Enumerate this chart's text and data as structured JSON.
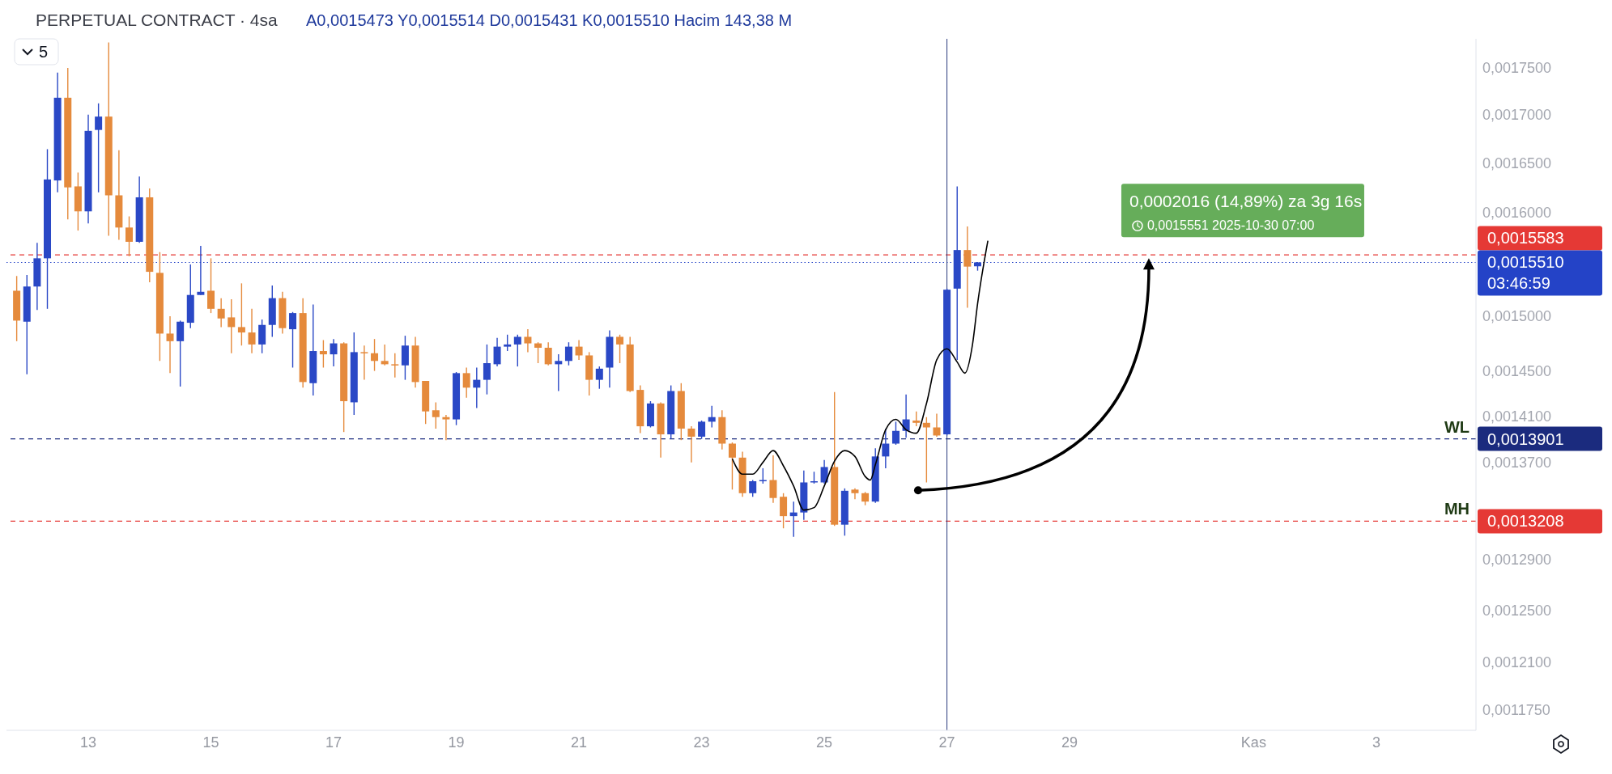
{
  "chart_data": {
    "type": "candlestick",
    "title": "PERPETUAL CONTRACT · 4sa",
    "log": "y",
    "x": [
      "2025-10-11T20:00",
      "2025-10-12T00:00",
      "2025-10-12T04:00",
      "2025-10-12T08:00",
      "2025-10-12T12:00",
      "2025-10-12T16:00",
      "2025-10-12T20:00",
      "2025-10-13T00:00",
      "2025-10-13T04:00",
      "2025-10-13T08:00",
      "2025-10-13T12:00",
      "2025-10-13T16:00",
      "2025-10-13T20:00",
      "2025-10-14T00:00",
      "2025-10-14T04:00",
      "2025-10-14T08:00",
      "2025-10-14T12:00",
      "2025-10-14T16:00",
      "2025-10-14T20:00",
      "2025-10-15T00:00",
      "2025-10-15T04:00",
      "2025-10-15T08:00",
      "2025-10-15T12:00",
      "2025-10-15T16:00",
      "2025-10-15T20:00",
      "2025-10-16T00:00",
      "2025-10-16T04:00",
      "2025-10-16T08:00",
      "2025-10-16T12:00",
      "2025-10-16T16:00",
      "2025-10-16T20:00",
      "2025-10-17T00:00",
      "2025-10-17T04:00",
      "2025-10-17T08:00",
      "2025-10-17T12:00",
      "2025-10-17T16:00",
      "2025-10-17T20:00",
      "2025-10-18T00:00",
      "2025-10-18T04:00",
      "2025-10-18T08:00",
      "2025-10-18T12:00",
      "2025-10-18T16:00",
      "2025-10-18T20:00",
      "2025-10-19T00:00",
      "2025-10-19T04:00",
      "2025-10-19T08:00",
      "2025-10-19T12:00",
      "2025-10-19T16:00",
      "2025-10-19T20:00",
      "2025-10-20T00:00",
      "2025-10-20T04:00",
      "2025-10-20T08:00",
      "2025-10-20T12:00",
      "2025-10-20T16:00",
      "2025-10-20T20:00",
      "2025-10-21T00:00",
      "2025-10-21T04:00",
      "2025-10-21T08:00",
      "2025-10-21T12:00",
      "2025-10-21T16:00",
      "2025-10-21T20:00",
      "2025-10-22T00:00",
      "2025-10-22T04:00",
      "2025-10-22T08:00",
      "2025-10-22T12:00",
      "2025-10-22T16:00",
      "2025-10-22T20:00",
      "2025-10-23T00:00",
      "2025-10-23T04:00",
      "2025-10-23T08:00",
      "2025-10-23T12:00",
      "2025-10-23T16:00",
      "2025-10-23T20:00",
      "2025-10-24T00:00",
      "2025-10-24T04:00",
      "2025-10-24T08:00",
      "2025-10-24T12:00",
      "2025-10-24T16:00",
      "2025-10-24T20:00",
      "2025-10-25T00:00",
      "2025-10-25T04:00",
      "2025-10-25T08:00",
      "2025-10-25T12:00",
      "2025-10-25T16:00",
      "2025-10-25T20:00",
      "2025-10-26T00:00",
      "2025-10-26T04:00",
      "2025-10-26T08:00",
      "2025-10-26T12:00",
      "2025-10-26T16:00",
      "2025-10-26T20:00",
      "2025-10-27T00:00",
      "2025-10-27T04:00",
      "2025-10-27T08:00",
      "2025-10-27T12:00"
    ],
    "ohlc": [
      [
        0.001524,
        0.001538,
        0.001477,
        0.001496
      ],
      [
        0.001495,
        0.001539,
        0.001447,
        0.001528
      ],
      [
        0.001528,
        0.00157,
        0.001506,
        0.001555
      ],
      [
        0.001555,
        0.001664,
        0.001507,
        0.001633
      ],
      [
        0.001632,
        0.001745,
        0.00162,
        0.001718
      ],
      [
        0.001718,
        0.00175,
        0.001593,
        0.001625
      ],
      [
        0.001626,
        0.00164,
        0.001582,
        0.001601
      ],
      [
        0.001601,
        0.0017,
        0.001589,
        0.001683
      ],
      [
        0.001684,
        0.001712,
        0.00162,
        0.001698
      ],
      [
        0.001698,
        0.001778,
        0.001577,
        0.001617
      ],
      [
        0.001617,
        0.001663,
        0.001573,
        0.001585
      ],
      [
        0.001585,
        0.001596,
        0.001557,
        0.001571
      ],
      [
        0.001571,
        0.001636,
        0.00157,
        0.001615
      ],
      [
        0.001615,
        0.001624,
        0.001532,
        0.001542
      ],
      [
        0.001541,
        0.001561,
        0.001459,
        0.001484
      ],
      [
        0.001484,
        0.0015,
        0.001448,
        0.001477
      ],
      [
        0.001477,
        0.001496,
        0.001436,
        0.001495
      ],
      [
        0.001494,
        0.001549,
        0.001489,
        0.00152
      ],
      [
        0.00152,
        0.001567,
        0.00152,
        0.001523
      ],
      [
        0.001524,
        0.001555,
        0.001503,
        0.001507
      ],
      [
        0.001507,
        0.001517,
        0.00149,
        0.001498
      ],
      [
        0.001499,
        0.001516,
        0.001466,
        0.00149
      ],
      [
        0.00149,
        0.001531,
        0.001473,
        0.001485
      ],
      [
        0.001485,
        0.001507,
        0.001466,
        0.001474
      ],
      [
        0.001474,
        0.001497,
        0.001466,
        0.001492
      ],
      [
        0.001492,
        0.001529,
        0.001481,
        0.001517
      ],
      [
        0.001517,
        0.001523,
        0.001484,
        0.001489
      ],
      [
        0.001488,
        0.001504,
        0.001453,
        0.001503
      ],
      [
        0.001503,
        0.001517,
        0.001435,
        0.00144
      ],
      [
        0.001439,
        0.001511,
        0.001428,
        0.001468
      ],
      [
        0.001468,
        0.001478,
        0.001453,
        0.001465
      ],
      [
        0.001465,
        0.001479,
        0.001454,
        0.001475
      ],
      [
        0.001475,
        0.001476,
        0.001396,
        0.001423
      ],
      [
        0.001422,
        0.001485,
        0.001411,
        0.001467
      ],
      [
        0.001467,
        0.001473,
        0.001442,
        0.001467
      ],
      [
        0.001466,
        0.001479,
        0.00145,
        0.001459
      ],
      [
        0.001459,
        0.001474,
        0.001455,
        0.001456
      ],
      [
        0.001456,
        0.001466,
        0.001444,
        0.001455
      ],
      [
        0.001455,
        0.001482,
        0.001442,
        0.001473
      ],
      [
        0.001473,
        0.001481,
        0.001435,
        0.00144
      ],
      [
        0.001441,
        0.001441,
        0.001403,
        0.001414
      ],
      [
        0.001415,
        0.001422,
        0.001399,
        0.001409
      ],
      [
        0.001409,
        0.001411,
        0.001389,
        0.001407
      ],
      [
        0.001407,
        0.001449,
        0.001402,
        0.001448
      ],
      [
        0.001448,
        0.001453,
        0.001426,
        0.001435
      ],
      [
        0.001435,
        0.001453,
        0.001417,
        0.001442
      ],
      [
        0.001442,
        0.001474,
        0.001429,
        0.001457
      ],
      [
        0.001456,
        0.00148,
        0.001454,
        0.001472
      ],
      [
        0.001472,
        0.001483,
        0.001468,
        0.001474
      ],
      [
        0.001474,
        0.001483,
        0.001454,
        0.001481
      ],
      [
        0.001481,
        0.001488,
        0.001467,
        0.001475
      ],
      [
        0.001475,
        0.001476,
        0.001457,
        0.001471
      ],
      [
        0.001471,
        0.001476,
        0.001455,
        0.001456
      ],
      [
        0.001456,
        0.001465,
        0.001432,
        0.001459
      ],
      [
        0.001459,
        0.001476,
        0.001455,
        0.001472
      ],
      [
        0.001472,
        0.001478,
        0.00146,
        0.001464
      ],
      [
        0.001464,
        0.001467,
        0.001428,
        0.001442
      ],
      [
        0.001442,
        0.001454,
        0.001434,
        0.001452
      ],
      [
        0.001453,
        0.001487,
        0.001435,
        0.001481
      ],
      [
        0.001481,
        0.001483,
        0.001457,
        0.001474
      ],
      [
        0.001474,
        0.001481,
        0.001431,
        0.001432
      ],
      [
        0.001433,
        0.001437,
        0.001395,
        0.001401
      ],
      [
        0.001401,
        0.001423,
        0.0014,
        0.001421
      ],
      [
        0.001421,
        0.001422,
        0.001374,
        0.001394
      ],
      [
        0.001394,
        0.001437,
        0.00139,
        0.001432
      ],
      [
        0.001432,
        0.001439,
        0.001389,
        0.001399
      ],
      [
        0.001399,
        0.001401,
        0.00137,
        0.001392
      ],
      [
        0.001392,
        0.001406,
        0.00139,
        0.001405
      ],
      [
        0.001405,
        0.001419,
        0.0014,
        0.001409
      ],
      [
        0.001409,
        0.001415,
        0.001381,
        0.001386
      ],
      [
        0.001386,
        0.001387,
        0.001347,
        0.001374
      ],
      [
        0.001374,
        0.001379,
        0.001341,
        0.001344
      ],
      [
        0.001344,
        0.001355,
        0.001341,
        0.001354
      ],
      [
        0.001354,
        0.001365,
        0.001352,
        0.001355
      ],
      [
        0.001355,
        0.001376,
        0.001336,
        0.00134
      ],
      [
        0.001341,
        0.001344,
        0.001315,
        0.001325
      ],
      [
        0.001325,
        0.001337,
        0.001308,
        0.001328
      ],
      [
        0.001328,
        0.001363,
        0.001322,
        0.001353
      ],
      [
        0.001353,
        0.001362,
        0.001352,
        0.001354
      ],
      [
        0.001353,
        0.001372,
        0.001352,
        0.001366
      ],
      [
        0.001366,
        0.001431,
        0.001317,
        0.001318
      ],
      [
        0.001318,
        0.001348,
        0.001309,
        0.001346
      ],
      [
        0.001347,
        0.001348,
        0.001339,
        0.001344
      ],
      [
        0.001344,
        0.001345,
        0.001334,
        0.001337
      ],
      [
        0.001337,
        0.001382,
        0.001336,
        0.001375
      ],
      [
        0.001375,
        0.001399,
        0.001365,
        0.001386
      ],
      [
        0.001386,
        0.001405,
        0.001385,
        0.001397
      ],
      [
        0.001397,
        0.001429,
        0.001391,
        0.001407
      ],
      [
        0.001406,
        0.001414,
        0.001401,
        0.001404
      ],
      [
        0.001404,
        0.001409,
        0.001353,
        0.0014
      ],
      [
        0.0014,
        0.001412,
        0.001392,
        0.001393
      ],
      [
        0.001394,
        0.001526,
        0.001393,
        0.001525
      ],
      [
        0.001526,
        0.001626,
        0.00146,
        0.001563
      ],
      [
        0.001563,
        0.001586,
        0.001508,
        0.001547
      ],
      [
        0.0015473,
        0.0015514,
        0.0015431,
        0.001551
      ]
    ],
    "colors": [
      "#e58a3c",
      "#2a48c6",
      "#2a48c6",
      "#2a48c6",
      "#2a48c6",
      "#e58a3c",
      "#e58a3c",
      "#2a48c6",
      "#2a48c6",
      "#e58a3c",
      "#e58a3c",
      "#e58a3c",
      "#2a48c6",
      "#e58a3c",
      "#e58a3c",
      "#e58a3c",
      "#2a48c6",
      "#2a48c6",
      "#2a48c6",
      "#e58a3c",
      "#e58a3c",
      "#e58a3c",
      "#e58a3c",
      "#e58a3c",
      "#2a48c6",
      "#2a48c6",
      "#e58a3c",
      "#2a48c6",
      "#e58a3c",
      "#2a48c6",
      "#e58a3c",
      "#2a48c6",
      "#e58a3c",
      "#2a48c6",
      "#e58a3c",
      "#e58a3c",
      "#e58a3c",
      "#e58a3c",
      "#2a48c6",
      "#e58a3c",
      "#e58a3c",
      "#e58a3c",
      "#e58a3c",
      "#2a48c6",
      "#e58a3c",
      "#2a48c6",
      "#2a48c6",
      "#2a48c6",
      "#2a48c6",
      "#2a48c6",
      "#e58a3c",
      "#e58a3c",
      "#e58a3c",
      "#2a48c6",
      "#2a48c6",
      "#e58a3c",
      "#e58a3c",
      "#2a48c6",
      "#2a48c6",
      "#e58a3c",
      "#e58a3c",
      "#e58a3c",
      "#2a48c6",
      "#e58a3c",
      "#2a48c6",
      "#e58a3c",
      "#e58a3c",
      "#2a48c6",
      "#2a48c6",
      "#e58a3c",
      "#e58a3c",
      "#e58a3c",
      "#2a48c6",
      "#2a48c6",
      "#e58a3c",
      "#e58a3c",
      "#2a48c6",
      "#2a48c6",
      "#2a48c6",
      "#2a48c6",
      "#e58a3c",
      "#2a48c6",
      "#e58a3c",
      "#e58a3c",
      "#2a48c6",
      "#2a48c6",
      "#2a48c6",
      "#2a48c6",
      "#e58a3c",
      "#e58a3c",
      "#e58a3c",
      "#2a48c6",
      "#2a48c6",
      "#e58a3c",
      "#2a48c6"
    ],
    "series": [
      {
        "type": "line",
        "color": "#000000",
        "x": [
          "2025-10-23T12:00",
          "2025-10-23T16:00",
          "2025-10-23T20:00",
          "2025-10-24T00:00",
          "2025-10-24T04:00",
          "2025-10-24T08:00",
          "2025-10-24T12:00",
          "2025-10-24T16:00",
          "2025-10-24T20:00",
          "2025-10-25T00:00",
          "2025-10-25T04:00",
          "2025-10-25T08:00",
          "2025-10-25T12:00",
          "2025-10-25T16:00",
          "2025-10-25T18:00",
          "2025-10-25T20:00",
          "2025-10-26T00:00",
          "2025-10-26T04:00",
          "2025-10-26T08:00",
          "2025-10-26T12:00",
          "2025-10-26T16:00",
          "2025-10-26T20:00",
          "2025-10-27T00:00",
          "2025-10-27T04:00",
          "2025-10-27T07:00",
          "2025-10-27T10:00",
          "2025-10-27T12:00",
          "2025-10-27T16:00"
        ],
        "values": [
          0.001373,
          0.00136,
          0.00136,
          0.00137,
          0.00138,
          0.001367,
          0.00135,
          0.00133,
          0.001332,
          0.00135,
          0.001371,
          0.00138,
          0.001375,
          0.001358,
          0.001355,
          0.001368,
          0.001398,
          0.001407,
          0.001398,
          0.001395,
          0.001421,
          0.00146,
          0.00147,
          0.001458,
          0.001448,
          0.001474,
          0.001512,
          0.001572
        ]
      }
    ],
    "xlim": [
      "2025-10-11T16:00",
      "2025-11-04T15:00"
    ],
    "xticks": [
      {
        "value": "2025-10-13",
        "label": "13"
      },
      {
        "value": "2025-10-15",
        "label": "15"
      },
      {
        "value": "2025-10-17",
        "label": "17"
      },
      {
        "value": "2025-10-19",
        "label": "19"
      },
      {
        "value": "2025-10-21",
        "label": "21"
      },
      {
        "value": "2025-10-23",
        "label": "23"
      },
      {
        "value": "2025-10-25",
        "label": "25"
      },
      {
        "value": "2025-10-27",
        "label": "27"
      },
      {
        "value": "2025-10-29",
        "label": "29"
      },
      {
        "value": "2025-11-01",
        "label": "Kas"
      },
      {
        "value": "2025-11-03",
        "label": "3"
      }
    ],
    "ylim": [
      0.00116,
      0.001782
    ],
    "yticks": [
      {
        "value": 0.00175,
        "label": "0,0017500"
      },
      {
        "value": 0.0017,
        "label": "0,0017000"
      },
      {
        "value": 0.00165,
        "label": "0,0016500"
      },
      {
        "value": 0.0016,
        "label": "0,0016000"
      },
      {
        "value": 0.0015,
        "label": "0,0015000"
      },
      {
        "value": 0.00145,
        "label": "0,0014500"
      },
      {
        "value": 0.00141,
        "label": "0,0014100"
      },
      {
        "value": 0.00137,
        "label": "0,0013700"
      },
      {
        "value": 0.001551,
        "label": "0,0015510"
      },
      {
        "value": 0.0013901,
        "label": "0,0013901"
      },
      {
        "value": 0.0013208,
        "label": "0,0013208"
      },
      {
        "value": 0.00129,
        "label": "0,0012900"
      },
      {
        "value": 0.00125,
        "label": "0,0012500"
      },
      {
        "value": 0.00121,
        "label": "0,0012100"
      },
      {
        "value": 0.001175,
        "label": "0,0011750"
      }
    ],
    "ref_lines": [
      {
        "axis": "y",
        "value": 0.0013901,
        "label": "WL",
        "color": "#1b2b7e",
        "line_style": "dashed"
      },
      {
        "axis": "y",
        "value": 0.0013208,
        "label": "MH",
        "color": "#e53935",
        "line_style": "dashed"
      },
      {
        "axis": "y",
        "value": 0.0015583,
        "label": "0,0015583",
        "color": "#e53935",
        "line_style": "dashed"
      },
      {
        "axis": "y",
        "value": 0.001551,
        "label": null,
        "color": "#2443c7",
        "line_style": "dotted"
      },
      {
        "axis": "x",
        "value": "2025-10-27T00:00",
        "label": null,
        "color": "#2a3a7c",
        "line_style": "solid"
      }
    ],
    "annotations": [
      "A0,0015473 Y0,0015514 D0,0015431 K0,0015510 Hacim 143,38 M",
      "5",
      "03:46:59",
      {
        "text": "0,0002016 (14,89%) za 3g 16s",
        "x": "2025-10-30T07:00",
        "y": 0.0015551
      },
      {
        "text": "0,0015551 2025-10-30 07:00",
        "x": "2025-10-30T07:00",
        "y": 0.0015551
      }
    ]
  }
}
